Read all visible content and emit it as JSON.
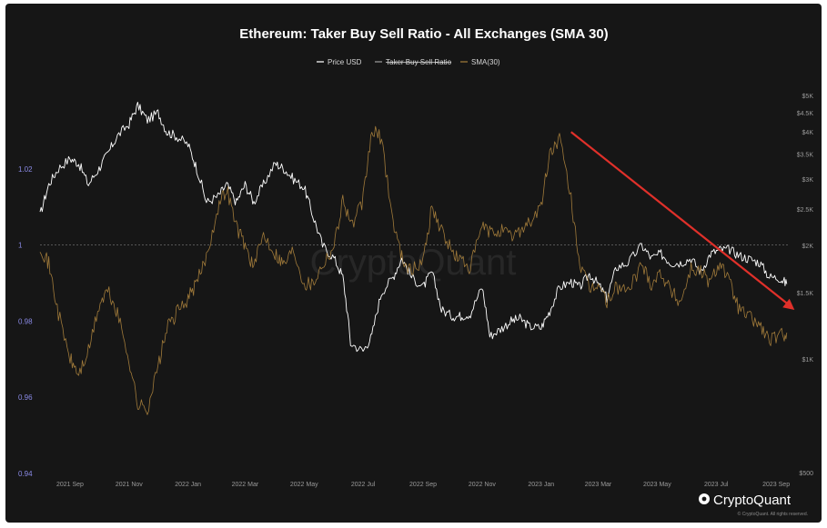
{
  "chart_data": {
    "type": "line",
    "title": "Ethereum: Taker Buy Sell Ratio - All Exchanges (SMA 30)",
    "watermark": "CryptoQuant",
    "brand": "CryptoQuant",
    "copyright": "© CryptoQuant. All rights reserved.",
    "legend": [
      {
        "label": "Price USD",
        "color": "#ffffff",
        "style": "normal"
      },
      {
        "label": "Taker Buy Sell Ratio",
        "color": "#9a9a9a",
        "style": "strikethrough"
      },
      {
        "label": "SMA(30)",
        "color": "#a07a3a",
        "style": "normal"
      }
    ],
    "x_tick_labels": [
      "2021 Sep",
      "2021 Nov",
      "2022 Jan",
      "2022 Mar",
      "2022 May",
      "2022 Jul",
      "2022 Sep",
      "2022 Nov",
      "2023 Jan",
      "2023 Mar",
      "2023 May",
      "2023 Jul",
      "2023 Sep"
    ],
    "y_left": {
      "ticks": [
        0.94,
        0.96,
        0.98,
        1.0,
        1.02
      ],
      "tick_labels": [
        "0.94",
        "0.96",
        "0.98",
        "1",
        "1.02"
      ],
      "ylim": [
        0.94,
        1.0405
      ],
      "color": "#8a8ae6"
    },
    "y_right": {
      "ticks": [
        500,
        1000,
        1500,
        2000,
        2500,
        3000,
        3500,
        4000,
        4500,
        5000
      ],
      "tick_labels": [
        "$500",
        "$1K",
        "$1.5K",
        "$2K",
        "$2.5K",
        "$3K",
        "$3.5K",
        "$4K",
        "$4.5K",
        "$5K"
      ],
      "scale": "log",
      "color": "#9a9a9a"
    },
    "reference_line": {
      "axis": "left",
      "value": 1.0
    },
    "x_start": "2021-08-01",
    "x_end": "2023-09-15",
    "series": [
      {
        "name": "Price USD",
        "axis": "right",
        "color": "#ffffff",
        "x": [
          "2021-08-01",
          "2021-08-10",
          "2021-08-20",
          "2021-09-01",
          "2021-09-10",
          "2021-09-20",
          "2021-10-01",
          "2021-10-10",
          "2021-10-20",
          "2021-11-01",
          "2021-11-10",
          "2021-11-20",
          "2021-12-01",
          "2021-12-10",
          "2021-12-20",
          "2022-01-01",
          "2022-01-10",
          "2022-01-20",
          "2022-02-01",
          "2022-02-10",
          "2022-02-20",
          "2022-03-01",
          "2022-03-10",
          "2022-03-20",
          "2022-04-01",
          "2022-04-10",
          "2022-04-20",
          "2022-05-01",
          "2022-05-10",
          "2022-05-20",
          "2022-06-01",
          "2022-06-10",
          "2022-06-18",
          "2022-07-01",
          "2022-07-10",
          "2022-07-20",
          "2022-08-01",
          "2022-08-10",
          "2022-08-20",
          "2022-09-01",
          "2022-09-10",
          "2022-09-20",
          "2022-10-01",
          "2022-10-10",
          "2022-10-20",
          "2022-11-01",
          "2022-11-09",
          "2022-11-20",
          "2022-12-01",
          "2022-12-10",
          "2022-12-20",
          "2023-01-01",
          "2023-01-10",
          "2023-01-20",
          "2023-02-01",
          "2023-02-10",
          "2023-02-20",
          "2023-03-01",
          "2023-03-10",
          "2023-03-20",
          "2023-04-01",
          "2023-04-15",
          "2023-04-25",
          "2023-05-05",
          "2023-05-15",
          "2023-05-25",
          "2023-06-05",
          "2023-06-15",
          "2023-06-25",
          "2023-07-05",
          "2023-07-15",
          "2023-07-25",
          "2023-08-05",
          "2023-08-15",
          "2023-08-25",
          "2023-09-05",
          "2023-09-12"
        ],
        "values": [
          2400,
          2900,
          3200,
          3400,
          3300,
          2900,
          3200,
          3500,
          3900,
          4200,
          4700,
          4300,
          4500,
          4000,
          3900,
          3700,
          3200,
          2600,
          2700,
          2900,
          2600,
          2900,
          2600,
          2900,
          3300,
          3200,
          3000,
          2850,
          2400,
          2000,
          1850,
          1650,
          1100,
          1050,
          1150,
          1500,
          1650,
          1850,
          1650,
          1550,
          1700,
          1350,
          1300,
          1300,
          1320,
          1550,
          1150,
          1200,
          1260,
          1280,
          1220,
          1210,
          1340,
          1550,
          1600,
          1550,
          1680,
          1580,
          1450,
          1750,
          1800,
          2000,
          1850,
          1900,
          1800,
          1800,
          1850,
          1700,
          1900,
          1950,
          1950,
          1880,
          1840,
          1800,
          1650,
          1640,
          1580
        ]
      },
      {
        "name": "SMA(30)",
        "axis": "left",
        "color": "#a07a3a",
        "x": [
          "2021-08-01",
          "2021-08-10",
          "2021-08-20",
          "2021-09-01",
          "2021-09-10",
          "2021-09-20",
          "2021-10-01",
          "2021-10-10",
          "2021-10-20",
          "2021-11-01",
          "2021-11-10",
          "2021-11-20",
          "2021-12-01",
          "2021-12-10",
          "2021-12-20",
          "2022-01-01",
          "2022-01-10",
          "2022-01-20",
          "2022-02-01",
          "2022-02-10",
          "2022-02-20",
          "2022-03-01",
          "2022-03-10",
          "2022-03-20",
          "2022-04-01",
          "2022-04-10",
          "2022-04-20",
          "2022-05-01",
          "2022-05-10",
          "2022-05-20",
          "2022-06-01",
          "2022-06-10",
          "2022-06-20",
          "2022-07-01",
          "2022-07-10",
          "2022-07-20",
          "2022-08-01",
          "2022-08-10",
          "2022-08-20",
          "2022-09-01",
          "2022-09-10",
          "2022-09-20",
          "2022-10-01",
          "2022-10-10",
          "2022-10-20",
          "2022-11-01",
          "2022-11-10",
          "2022-11-20",
          "2022-12-01",
          "2022-12-10",
          "2022-12-20",
          "2023-01-01",
          "2023-01-10",
          "2023-01-20",
          "2023-02-01",
          "2023-02-10",
          "2023-02-20",
          "2023-03-01",
          "2023-03-10",
          "2023-03-20",
          "2023-04-01",
          "2023-04-15",
          "2023-04-25",
          "2023-05-05",
          "2023-05-15",
          "2023-05-25",
          "2023-06-05",
          "2023-06-15",
          "2023-06-25",
          "2023-07-05",
          "2023-07-15",
          "2023-07-25",
          "2023-08-05",
          "2023-08-15",
          "2023-08-25",
          "2023-09-05",
          "2023-09-12"
        ],
        "values": [
          1.0,
          0.995,
          0.982,
          0.97,
          0.966,
          0.972,
          0.984,
          0.988,
          0.982,
          0.97,
          0.958,
          0.957,
          0.968,
          0.978,
          0.982,
          0.986,
          0.99,
          0.997,
          1.01,
          1.015,
          1.005,
          1.0,
          0.994,
          1.003,
          0.998,
          0.995,
          0.999,
          0.99,
          0.99,
          0.995,
          1.0,
          1.012,
          1.005,
          1.012,
          1.03,
          1.028,
          1.006,
          0.997,
          0.993,
          0.996,
          1.01,
          1.004,
          0.998,
          0.996,
          0.994,
          1.005,
          1.003,
          1.004,
          1.002,
          1.004,
          1.006,
          1.01,
          1.024,
          1.028,
          1.012,
          0.995,
          0.988,
          0.99,
          0.985,
          0.989,
          0.988,
          0.995,
          0.99,
          0.993,
          0.988,
          0.985,
          0.994,
          0.993,
          0.99,
          0.996,
          0.99,
          0.983,
          0.981,
          0.979,
          0.975,
          0.976,
          0.977
        ]
      }
    ],
    "annotation_arrow": {
      "color": "#e0302a",
      "from": {
        "x": "2023-02-01",
        "y": 4000
      },
      "to": {
        "x": "2023-09-20",
        "y": 1350
      }
    }
  }
}
